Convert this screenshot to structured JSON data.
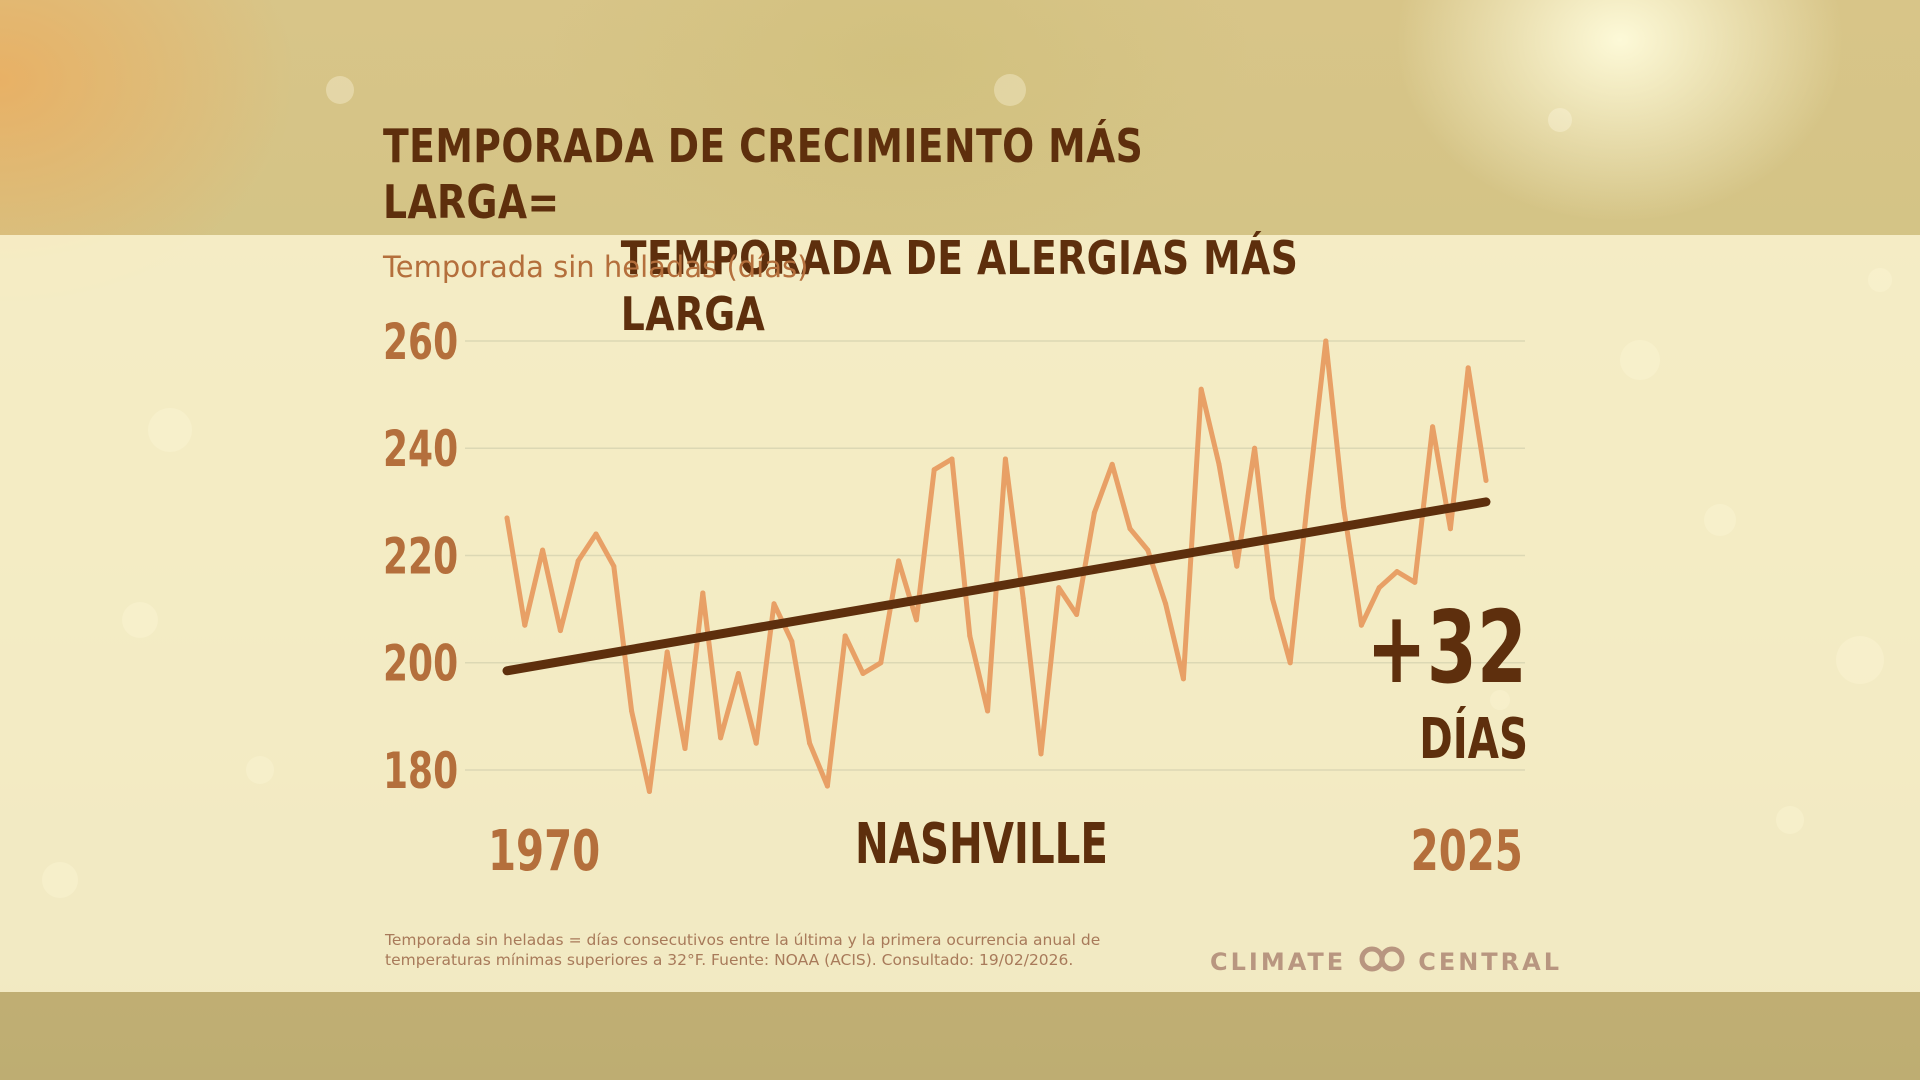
{
  "title": {
    "line1": "TEMPORADA DE CRECIMIENTO MÁS LARGA=",
    "line2": "TEMPORADA DE ALERGIAS MÁS LARGA"
  },
  "location": "NASHVILLE",
  "highlight": {
    "value": "+32",
    "unit": "DÍAS"
  },
  "footnote": {
    "line1": "Temporada sin heladas = días consecutivos entre la última y la primera ocurrencia anual de",
    "line2": "temperaturas mínimas superiores a 32°F. Fuente: NOAA (ACIS). Consultado: 19/02/2026."
  },
  "logo": {
    "left": "CLIMATE",
    "right": "CENTRAL"
  },
  "colors": {
    "series": "#e8a066",
    "trend": "#5e2f0d",
    "text_dark": "#5e2f0d",
    "text_accent": "#b46f3c",
    "grid": "#dcd8b4"
  },
  "chart_data": {
    "type": "line",
    "title": "TEMPORADA DE CRECIMIENTO MÁS LARGA= TEMPORADA DE ALERGIAS MÁS LARGA",
    "ylabel": "Temporada sin heladas (días)",
    "xlabel": "",
    "x_tick_labels": [
      "1970",
      "2025"
    ],
    "y_ticks": [
      180,
      200,
      220,
      240,
      260
    ],
    "ylim": [
      180,
      260
    ],
    "xlim": [
      1970,
      2025
    ],
    "grid": true,
    "x": [
      1970,
      1971,
      1972,
      1973,
      1974,
      1975,
      1976,
      1977,
      1978,
      1979,
      1980,
      1981,
      1982,
      1983,
      1984,
      1985,
      1986,
      1987,
      1988,
      1989,
      1990,
      1991,
      1992,
      1993,
      1994,
      1995,
      1996,
      1997,
      1998,
      1999,
      2000,
      2001,
      2002,
      2003,
      2004,
      2005,
      2006,
      2007,
      2008,
      2009,
      2010,
      2011,
      2012,
      2013,
      2014,
      2015,
      2016,
      2017,
      2018,
      2019,
      2020,
      2021,
      2022,
      2023,
      2024,
      2025
    ],
    "series": [
      {
        "values": [
          227,
          207,
          221,
          206,
          219,
          224,
          218,
          191,
          176,
          202,
          184,
          213,
          186,
          198,
          185,
          211,
          204,
          185,
          177,
          205,
          198,
          200,
          219,
          208,
          236,
          238,
          205,
          191,
          238,
          212,
          183,
          214,
          209,
          228,
          237,
          225,
          221,
          211,
          197,
          251,
          237,
          218,
          240,
          212,
          200,
          231,
          260,
          229,
          207,
          214,
          217,
          215,
          244,
          225,
          255,
          234
        ]
      },
      {
        "values": [
          198.5,
          230
        ],
        "x": [
          1970,
          2025
        ],
        "role": "trend"
      }
    ],
    "annotations": [
      "+32 DÍAS",
      "NASHVILLE"
    ]
  }
}
